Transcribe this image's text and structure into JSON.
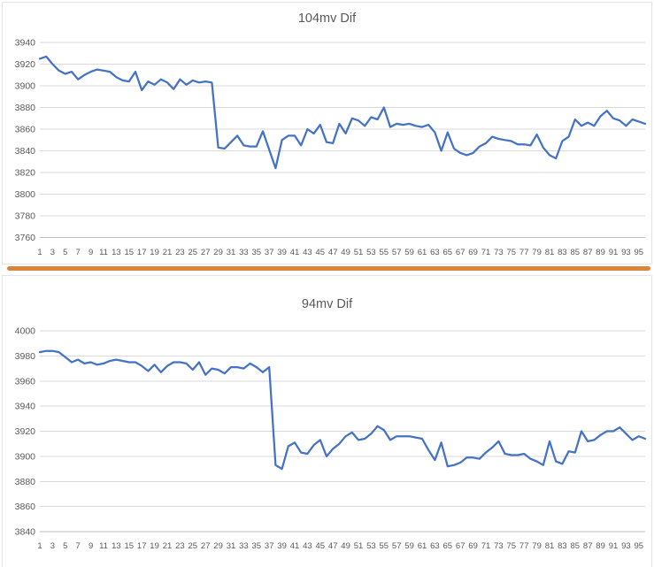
{
  "page": {
    "background": "#FFFFFF",
    "divider_color": "#DC8437"
  },
  "chart_data": [
    {
      "type": "line",
      "title": "104mv Dif",
      "xlabel": "",
      "ylabel": "",
      "x_note": "x = point index 1..96, odd ticks labeled",
      "x_ticks": [
        1,
        3,
        5,
        7,
        9,
        11,
        13,
        15,
        17,
        19,
        21,
        23,
        25,
        27,
        29,
        31,
        33,
        35,
        37,
        39,
        41,
        43,
        45,
        47,
        49,
        51,
        53,
        55,
        57,
        59,
        61,
        63,
        65,
        67,
        69,
        71,
        73,
        75,
        77,
        79,
        81,
        83,
        85,
        87,
        89,
        91,
        93,
        95
      ],
      "y_ticks": [
        3940,
        3920,
        3900,
        3880,
        3860,
        3840,
        3820,
        3800,
        3780,
        3760
      ],
      "ylim": [
        3760,
        3940
      ],
      "grid": true,
      "legend": "none",
      "line_color": "#4472C4",
      "grid_color": "#D9D9D9",
      "axis_color": "#BFBFBF",
      "values": [
        3925,
        3927,
        3920,
        3914,
        3911,
        3913,
        3906,
        3910,
        3913,
        3915,
        3914,
        3913,
        3908,
        3905,
        3904,
        3913,
        3896,
        3904,
        3901,
        3906,
        3903,
        3897,
        3906,
        3901,
        3905,
        3903,
        3904,
        3903,
        3843,
        3842,
        3848,
        3854,
        3845,
        3844,
        3844,
        3858,
        3841,
        3824,
        3850,
        3854,
        3854,
        3845,
        3860,
        3856,
        3864,
        3848,
        3847,
        3865,
        3856,
        3870,
        3868,
        3863,
        3871,
        3869,
        3880,
        3862,
        3865,
        3864,
        3865,
        3863,
        3862,
        3864,
        3857,
        3840,
        3857,
        3842,
        3838,
        3836,
        3838,
        3844,
        3847,
        3853,
        3851,
        3850,
        3849,
        3846,
        3846,
        3845,
        3855,
        3843,
        3836,
        3833,
        3849,
        3853,
        3869,
        3863,
        3866,
        3863,
        3872,
        3877,
        3870,
        3868,
        3863,
        3869,
        3867,
        3865
      ]
    },
    {
      "type": "line",
      "title": "94mv Dif",
      "xlabel": "",
      "ylabel": "",
      "x_note": "x = point index 1..96, odd ticks labeled",
      "x_ticks": [
        1,
        3,
        5,
        7,
        9,
        11,
        13,
        15,
        17,
        19,
        21,
        23,
        25,
        27,
        29,
        31,
        33,
        35,
        37,
        39,
        41,
        43,
        45,
        47,
        49,
        51,
        53,
        55,
        57,
        59,
        61,
        63,
        65,
        67,
        69,
        71,
        73,
        75,
        77,
        79,
        81,
        83,
        85,
        87,
        89,
        91,
        93,
        95
      ],
      "y_ticks": [
        4000,
        3980,
        3960,
        3940,
        3920,
        3900,
        3880,
        3860,
        3840
      ],
      "ylim": [
        3840,
        4000
      ],
      "grid": true,
      "legend": "none",
      "line_color": "#4472C4",
      "grid_color": "#D9D9D9",
      "axis_color": "#BFBFBF",
      "values": [
        3983,
        3984,
        3984,
        3983,
        3979,
        3975,
        3977,
        3974,
        3975,
        3973,
        3974,
        3976,
        3977,
        3976,
        3975,
        3975,
        3972,
        3968,
        3973,
        3967,
        3972,
        3975,
        3975,
        3974,
        3969,
        3975,
        3965,
        3970,
        3969,
        3966,
        3971,
        3971,
        3970,
        3974,
        3971,
        3967,
        3971,
        3893,
        3890,
        3908,
        3911,
        3903,
        3902,
        3909,
        3913,
        3900,
        3906,
        3910,
        3916,
        3919,
        3913,
        3914,
        3918,
        3924,
        3921,
        3913,
        3916,
        3916,
        3916,
        3915,
        3914,
        3905,
        3897,
        3911,
        3892,
        3893,
        3895,
        3899,
        3899,
        3898,
        3903,
        3907,
        3912,
        3902,
        3901,
        3901,
        3902,
        3898,
        3896,
        3893,
        3912,
        3896,
        3894,
        3904,
        3903,
        3920,
        3912,
        3913,
        3917,
        3920,
        3920,
        3923,
        3918,
        3913,
        3916,
        3914
      ]
    }
  ]
}
